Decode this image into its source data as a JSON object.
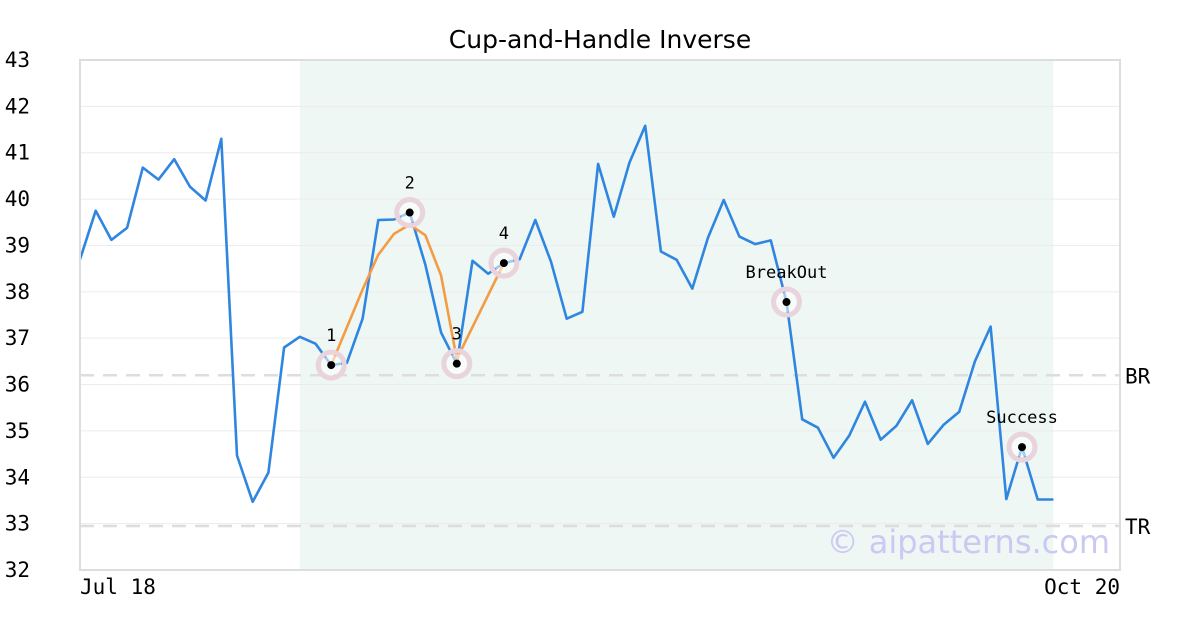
{
  "chart_data": {
    "type": "line",
    "title": "Cup-and-Handle Inverse",
    "xlabel": "",
    "ylabel": "",
    "x_start_label": "Jul 18",
    "x_end_label": "Oct 20",
    "ylim": [
      32,
      43
    ],
    "yticks": [
      32,
      33,
      34,
      35,
      36,
      37,
      38,
      39,
      40,
      41,
      42,
      43
    ],
    "grid": true,
    "colors": {
      "price": "#2f86e0",
      "pattern": "#f39c45",
      "region": "#eef7f3",
      "marker_halo": "#e9d3dc",
      "reference": "#dddddd",
      "watermark": "#c9c9f3"
    },
    "price_series": [
      38.7,
      39.75,
      39.12,
      39.38,
      40.68,
      40.42,
      40.86,
      40.27,
      39.97,
      41.3,
      34.47,
      33.47,
      34.1,
      36.8,
      37.03,
      36.88,
      36.42,
      36.47,
      37.42,
      39.55,
      39.56,
      39.71,
      38.58,
      37.12,
      36.45,
      38.67,
      38.39,
      38.62,
      38.7,
      39.55,
      38.65,
      37.42,
      37.57,
      40.76,
      39.62,
      40.79,
      41.58,
      38.87,
      38.69,
      38.07,
      39.17,
      39.98,
      39.19,
      39.03,
      39.11,
      37.78,
      35.25,
      35.07,
      34.42,
      34.9,
      35.63,
      34.81,
      35.11,
      35.66,
      34.72,
      35.13,
      35.41,
      36.5,
      37.25,
      33.53,
      34.65,
      33.52,
      33.52
    ],
    "pattern_region": {
      "start_index": 14,
      "end_index": 62
    },
    "pattern_line": [
      {
        "i": 16,
        "y": 36.42
      },
      {
        "i": 18,
        "y": 38.05
      },
      {
        "i": 19,
        "y": 38.8
      },
      {
        "i": 20,
        "y": 39.25
      },
      {
        "i": 21,
        "y": 39.45
      },
      {
        "i": 22,
        "y": 39.22
      },
      {
        "i": 23,
        "y": 38.35
      },
      {
        "i": 24,
        "y": 36.55
      },
      {
        "i": 27,
        "y": 38.62
      }
    ],
    "points": [
      {
        "label": "1",
        "i": 16,
        "y": 36.42,
        "label_pos": "above"
      },
      {
        "label": "2",
        "i": 21,
        "y": 39.71,
        "label_pos": "above"
      },
      {
        "label": "3",
        "i": 24,
        "y": 36.45,
        "label_pos": "above"
      },
      {
        "label": "4",
        "i": 27,
        "y": 38.62,
        "label_pos": "above"
      },
      {
        "label": "BreakOut",
        "i": 45,
        "y": 37.78,
        "label_pos": "above"
      },
      {
        "label": "Success",
        "i": 60,
        "y": 34.65,
        "label_pos": "above"
      }
    ],
    "reference_lines": [
      {
        "label": "BR",
        "y": 36.2
      },
      {
        "label": "TR",
        "y": 32.95
      }
    ],
    "watermark": "© aipatterns.com"
  }
}
